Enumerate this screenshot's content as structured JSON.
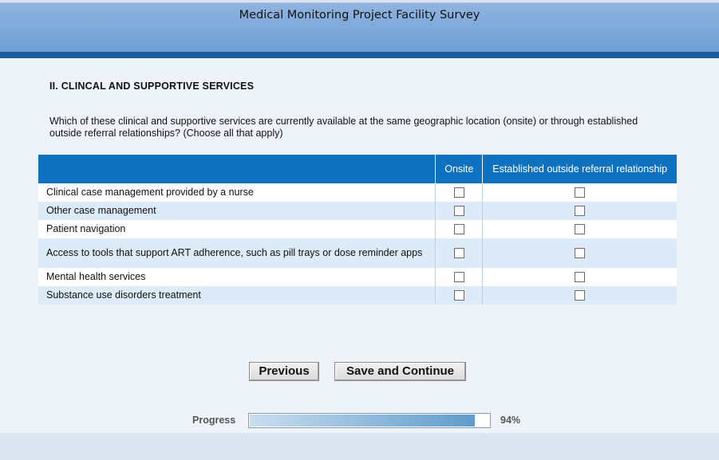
{
  "header": {
    "title": "Medical Monitoring Project Facility Survey"
  },
  "section": {
    "title": "II. CLINCAL AND SUPPORTIVE SERVICES",
    "question": "Which of these clinical and supportive services are currently available at the same geographic location (onsite) or through established outside referral relationships? (Choose all that apply)"
  },
  "table": {
    "columns": [
      "",
      "Onsite",
      "Established outside referral relationship"
    ],
    "rows": [
      {
        "label": "Clinical case management provided by a nurse",
        "onsite": false,
        "referral": false
      },
      {
        "label": "Other case management",
        "onsite": false,
        "referral": false
      },
      {
        "label": "Patient navigation",
        "onsite": false,
        "referral": false
      },
      {
        "label": "Access to tools that support ART adherence, such as pill trays or dose reminder apps",
        "onsite": false,
        "referral": false
      },
      {
        "label": "Mental health services",
        "onsite": false,
        "referral": false
      },
      {
        "label": "Substance use disorders treatment",
        "onsite": false,
        "referral": false
      }
    ]
  },
  "buttons": {
    "previous": "Previous",
    "save_continue": "Save and Continue"
  },
  "progress": {
    "label": "Progress",
    "value": 94,
    "value_text": "94%"
  },
  "colors": {
    "header_band": "#1c5b9f",
    "table_header": "#0f72c0",
    "row_alt": "#ddeaf7"
  }
}
